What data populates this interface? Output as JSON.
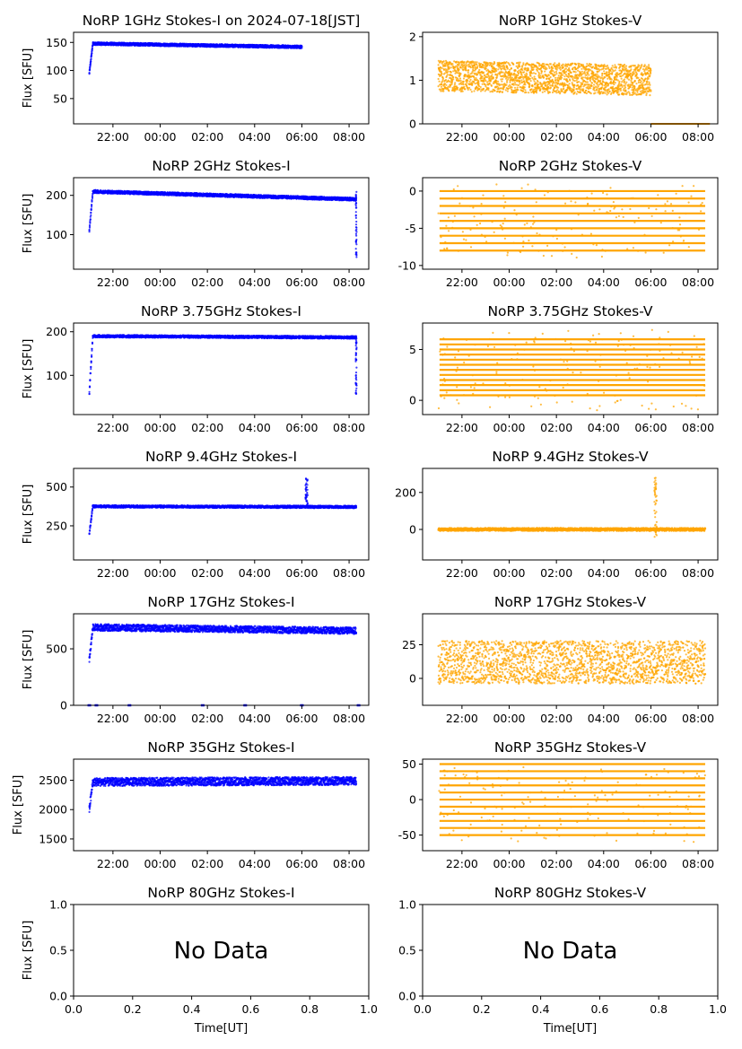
{
  "figure": {
    "xlabel": "Time[UT]",
    "ylabel": "Flux [SFU]",
    "no_data_text": "No Data",
    "time_ticks": [
      "22:00",
      "00:00",
      "02:00",
      "04:00",
      "06:00",
      "08:00"
    ],
    "empty_ticks": [
      "0.0",
      "0.2",
      "0.4",
      "0.6",
      "0.8",
      "1.0"
    ],
    "colors": {
      "stokes_i": "#0000ff",
      "stokes_v": "#ffa500",
      "axes": "#000000",
      "background": "#ffffff"
    }
  },
  "chart_data": [
    {
      "id": "i1",
      "type": "scatter",
      "title": "NoRP 1GHz Stokes-I on 2024-07-18[JST]",
      "ylabel": "Flux [SFU]",
      "xlabel": "",
      "color": "#0000ff",
      "xlim": [
        20.333,
        32.833
      ],
      "ylim": [
        5,
        168
      ],
      "yticks": [
        50,
        100,
        150
      ],
      "series": [
        {
          "start_hour": 21.0,
          "end_hour": 30.0,
          "rise": [
            95,
            148
          ],
          "base": 148,
          "end_value": 142,
          "spread": 2.5
        }
      ]
    },
    {
      "id": "v1",
      "type": "scatter",
      "title": "NoRP 1GHz Stokes-V",
      "ylabel": "",
      "xlabel": "",
      "color": "#ffa500",
      "xlim": [
        20.333,
        32.833
      ],
      "ylim": [
        0,
        2.1
      ],
      "yticks": [
        0,
        1,
        2
      ],
      "series": [
        {
          "start_hour": 21.0,
          "end_hour": 30.0,
          "base": 1.1,
          "end_value": 1.0,
          "spread": 0.35,
          "tail_value": 0.0,
          "tail_end": 32.5
        }
      ]
    },
    {
      "id": "i2",
      "type": "scatter",
      "title": "NoRP 2GHz Stokes-I",
      "ylabel": "Flux [SFU]",
      "xlabel": "",
      "color": "#0000ff",
      "xlim": [
        20.333,
        32.833
      ],
      "ylim": [
        12,
        245
      ],
      "yticks": [
        100,
        200
      ],
      "series": [
        {
          "start_hour": 21.0,
          "end_hour": 32.3,
          "rise": [
            110,
            210
          ],
          "base": 210,
          "end_value": 190,
          "spread": 4,
          "dip_at": 32.3,
          "dip_min": 40
        }
      ]
    },
    {
      "id": "v2",
      "type": "scatter",
      "title": "NoRP 2GHz Stokes-V",
      "ylabel": "",
      "xlabel": "",
      "color": "#ffa500",
      "xlim": [
        20.333,
        32.833
      ],
      "ylim": [
        -10.5,
        1.8
      ],
      "yticks": [
        -10,
        -5,
        0
      ],
      "series": [
        {
          "start_hour": 21.0,
          "end_hour": 32.3,
          "levels": [
            0,
            -1,
            -2,
            -3,
            -4,
            -5,
            -6,
            -7,
            -8
          ],
          "scatter_min": -9,
          "scatter_max": 1
        }
      ]
    },
    {
      "id": "i3",
      "type": "scatter",
      "title": "NoRP 3.75GHz Stokes-I",
      "ylabel": "Flux [SFU]",
      "xlabel": "",
      "color": "#0000ff",
      "xlim": [
        20.333,
        32.833
      ],
      "ylim": [
        10,
        220
      ],
      "yticks": [
        100,
        200
      ],
      "series": [
        {
          "start_hour": 21.0,
          "end_hour": 32.3,
          "rise": [
            60,
            192
          ],
          "base": 190,
          "end_value": 187,
          "spread": 3,
          "dip_at": 32.3,
          "dip_min": 55
        }
      ]
    },
    {
      "id": "v3",
      "type": "scatter",
      "title": "NoRP 3.75GHz Stokes-V",
      "ylabel": "",
      "xlabel": "",
      "color": "#ffa500",
      "xlim": [
        20.333,
        32.833
      ],
      "ylim": [
        -1.4,
        7.6
      ],
      "yticks": [
        0,
        5
      ],
      "series": [
        {
          "start_hour": 21.0,
          "end_hour": 32.3,
          "levels": [
            0.5,
            1,
            1.5,
            2,
            2.5,
            3,
            3.5,
            4,
            4.5,
            5,
            5.5,
            6
          ],
          "scatter_min": -1,
          "scatter_max": 7
        }
      ]
    },
    {
      "id": "i4",
      "type": "scatter",
      "title": "NoRP 9.4GHz Stokes-I",
      "ylabel": "Flux [SFU]",
      "xlabel": "",
      "color": "#0000ff",
      "xlim": [
        20.333,
        32.833
      ],
      "ylim": [
        30,
        620
      ],
      "yticks": [
        250,
        500
      ],
      "series": [
        {
          "start_hour": 21.0,
          "end_hour": 32.3,
          "rise": [
            200,
            380
          ],
          "base": 375,
          "end_value": 372,
          "spread": 8,
          "spike_at": 30.2,
          "spike_max": 560
        }
      ]
    },
    {
      "id": "v4",
      "type": "scatter",
      "title": "NoRP 9.4GHz Stokes-V",
      "ylabel": "",
      "xlabel": "",
      "color": "#ffa500",
      "xlim": [
        20.333,
        32.833
      ],
      "ylim": [
        -165,
        330
      ],
      "yticks": [
        0,
        200
      ],
      "series": [
        {
          "start_hour": 21.0,
          "end_hour": 32.3,
          "base": 0,
          "spread": 8,
          "spike_at": 30.2,
          "spike_max": 280,
          "spike_min": -60
        }
      ]
    },
    {
      "id": "i5",
      "type": "scatter",
      "title": "NoRP 17GHz Stokes-I",
      "ylabel": "Flux [SFU]",
      "xlabel": "",
      "color": "#0000ff",
      "xlim": [
        20.333,
        32.833
      ],
      "ylim": [
        0,
        810
      ],
      "yticks": [
        0,
        500
      ],
      "series": [
        {
          "start_hour": 21.0,
          "end_hour": 32.3,
          "rise": [
            400,
            690
          ],
          "base": 690,
          "end_value": 660,
          "spread": 30,
          "zero_marks": [
            21.0,
            21.3,
            22.7,
            25.8,
            27.6,
            30.0,
            32.4
          ]
        }
      ]
    },
    {
      "id": "v5",
      "type": "scatter",
      "title": "NoRP 17GHz Stokes-V",
      "ylabel": "",
      "xlabel": "",
      "color": "#ffa500",
      "xlim": [
        20.333,
        32.833
      ],
      "ylim": [
        -20,
        48
      ],
      "yticks": [
        0,
        25
      ],
      "series": [
        {
          "start_hour": 21.0,
          "end_hour": 32.3,
          "base": 12,
          "spread": 16,
          "scatter_min": -8,
          "scatter_max": 42
        }
      ]
    },
    {
      "id": "i6",
      "type": "scatter",
      "title": "NoRP 35GHz Stokes-I",
      "ylabel": "Flux [SFU]",
      "xlabel": "",
      "color": "#0000ff",
      "xlim": [
        20.333,
        32.833
      ],
      "ylim": [
        1300,
        2860
      ],
      "yticks": [
        1500,
        2000,
        2500
      ],
      "series": [
        {
          "start_hour": 21.0,
          "end_hour": 32.3,
          "rise": [
            2000,
            2480
          ],
          "base": 2470,
          "end_value": 2490,
          "spread": 70
        }
      ]
    },
    {
      "id": "v6",
      "type": "scatter",
      "title": "NoRP 35GHz Stokes-V",
      "ylabel": "",
      "xlabel": "",
      "color": "#ffa500",
      "xlim": [
        20.333,
        32.833
      ],
      "ylim": [
        -72,
        57
      ],
      "yticks": [
        -50,
        0,
        50
      ],
      "series": [
        {
          "start_hour": 21.0,
          "end_hour": 32.3,
          "levels": [
            -50,
            -40,
            -30,
            -20,
            -10,
            0,
            10,
            20,
            30,
            40,
            50
          ],
          "scatter_min": -60,
          "scatter_max": 50
        }
      ]
    },
    {
      "id": "i7",
      "type": "empty",
      "title": "NoRP 80GHz Stokes-I",
      "ylabel": "Flux [SFU]",
      "xlabel": "Time[UT]",
      "xlim": [
        0,
        1
      ],
      "ylim": [
        0,
        1
      ],
      "yticks": [
        0.0,
        0.5,
        1.0
      ],
      "annotation": "No Data"
    },
    {
      "id": "v7",
      "type": "empty",
      "title": "NoRP 80GHz Stokes-V",
      "ylabel": "",
      "xlabel": "Time[UT]",
      "xlim": [
        0,
        1
      ],
      "ylim": [
        0,
        1
      ],
      "yticks": [
        0.0,
        0.5,
        1.0
      ],
      "annotation": "No Data"
    }
  ]
}
